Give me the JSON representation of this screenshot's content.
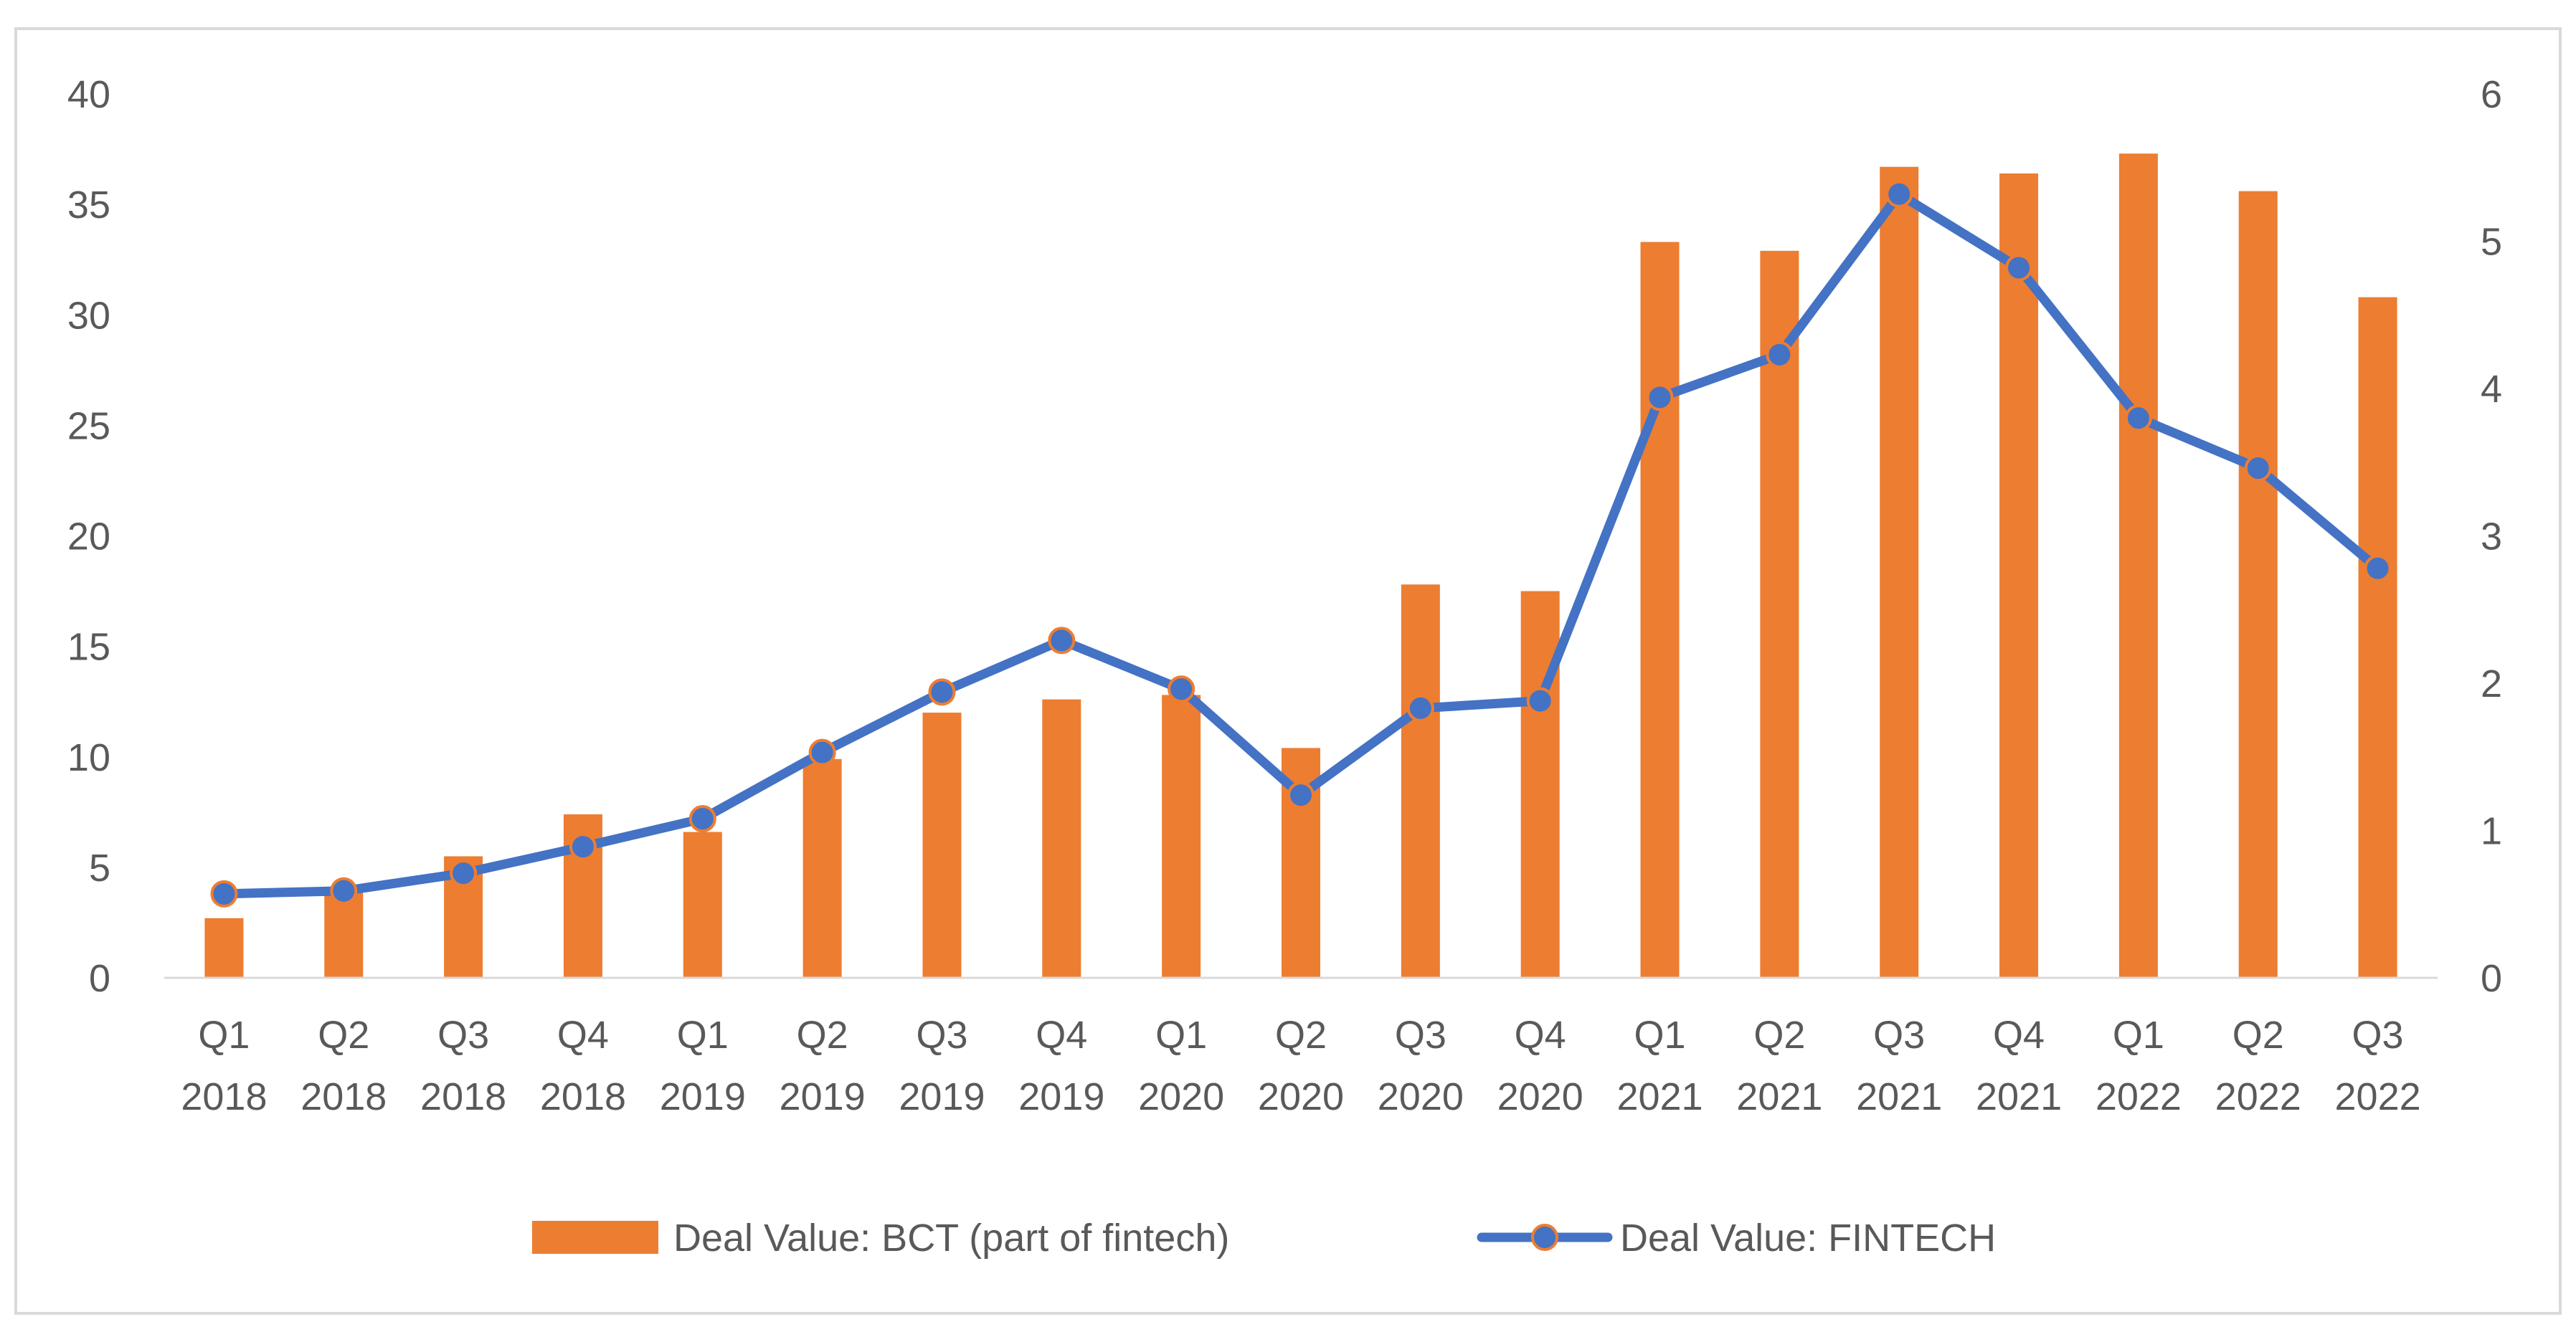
{
  "chart_data": {
    "type": "bar+line",
    "categories": [
      [
        "Q1",
        "2018"
      ],
      [
        "Q2",
        "2018"
      ],
      [
        "Q3",
        "2018"
      ],
      [
        "Q4",
        "2018"
      ],
      [
        "Q1",
        "2019"
      ],
      [
        "Q2",
        "2019"
      ],
      [
        "Q3",
        "2019"
      ],
      [
        "Q4",
        "2019"
      ],
      [
        "Q1",
        "2020"
      ],
      [
        "Q2",
        "2020"
      ],
      [
        "Q3",
        "2020"
      ],
      [
        "Q4",
        "2020"
      ],
      [
        "Q1",
        "2021"
      ],
      [
        "Q2",
        "2021"
      ],
      [
        "Q3",
        "2021"
      ],
      [
        "Q4",
        "2021"
      ],
      [
        "Q1",
        "2022"
      ],
      [
        "Q2",
        "2022"
      ],
      [
        "Q3",
        "2022"
      ]
    ],
    "series": [
      {
        "name": "Deal Value: BCT (part of fintech)",
        "type": "bar",
        "axis": "left",
        "color": "#ed7d31",
        "values": [
          2.7,
          3.9,
          5.5,
          7.4,
          6.6,
          9.9,
          12.0,
          12.6,
          12.8,
          10.4,
          17.8,
          17.5,
          33.3,
          32.9,
          36.7,
          36.4,
          37.3,
          35.6,
          30.8
        ]
      },
      {
        "name": "Deal Value: FINTECH",
        "type": "line",
        "axis": "right",
        "color": "#4472c4",
        "marker_edge_color": "#ed7d31",
        "values": [
          0.57,
          0.59,
          0.71,
          0.89,
          1.08,
          1.53,
          1.94,
          2.29,
          1.96,
          1.24,
          1.83,
          1.88,
          3.94,
          4.23,
          5.32,
          4.82,
          3.8,
          3.46,
          2.78
        ]
      }
    ],
    "left_axis": {
      "min": 0,
      "max": 40,
      "ticks": [
        "0",
        "5",
        "10",
        "15",
        "20",
        "25",
        "30",
        "35",
        "40"
      ]
    },
    "right_axis": {
      "min": 0,
      "max": 6,
      "ticks": [
        "0",
        "1",
        "2",
        "3",
        "4",
        "5",
        "6"
      ]
    },
    "legend": {
      "position": "bottom",
      "items": [
        "Deal Value: BCT (part of fintech)",
        "Deal Value: FINTECH"
      ]
    },
    "gridlines": false,
    "title": ""
  }
}
